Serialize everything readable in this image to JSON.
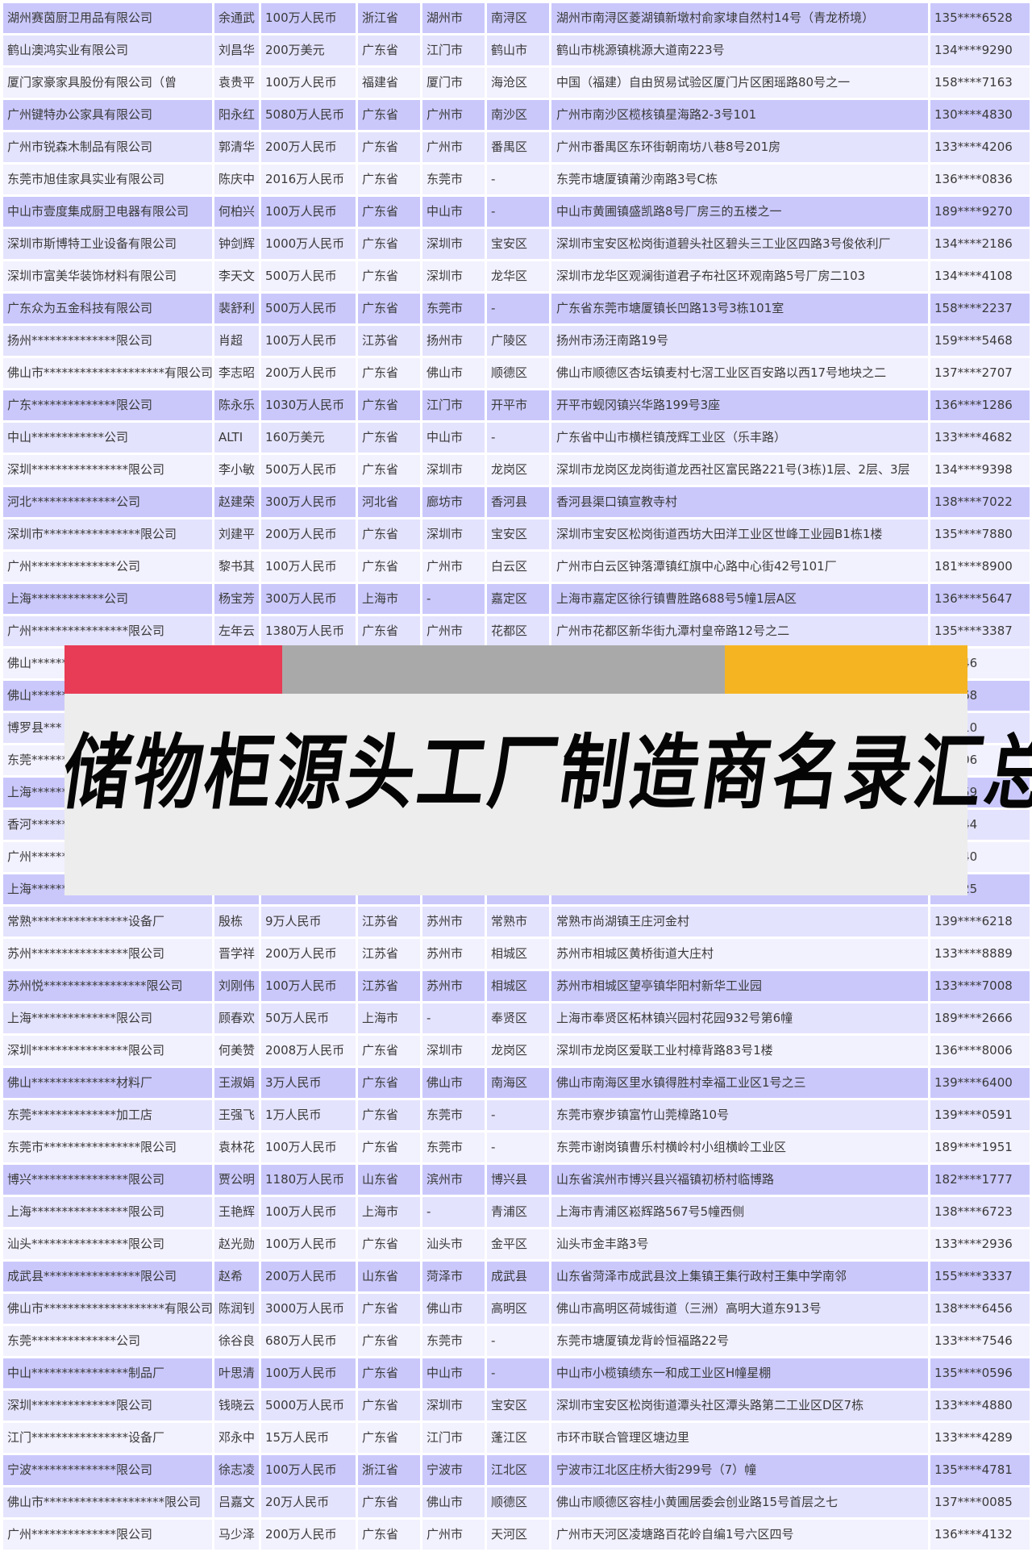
{
  "title": "储物柜源头工厂制造商名录汇总",
  "colors": {
    "row_dark": "#cac8fb",
    "row_medium": "#e4e3fd",
    "row_light": "#f2f1fe",
    "strip_red": "#e83b55",
    "strip_gray": "#a9a9a9",
    "strip_yellow": "#f5b523",
    "banner_bg": "#ededed"
  },
  "rows": [
    [
      "湖州赛茵厨卫用品有限公司",
      "余通武",
      "100万人民币",
      "浙江省",
      "湖州市",
      "南浔区",
      "湖州市南浔区菱湖镇新墩村俞家埭自然村14号（青龙桥境）",
      "135****6528"
    ],
    [
      "鹤山澳鸿实业有限公司",
      "刘昌华",
      "200万美元",
      "广东省",
      "江门市",
      "鹤山市",
      "鹤山市桃源镇桃源大道南223号",
      "134****9290"
    ],
    [
      "厦门家豪家具股份有限公司（曾",
      "袁贵平",
      "100万人民币",
      "福建省",
      "厦门市",
      "海沧区",
      "中国（福建）自由贸易试验区厦门片区囷瑶路80号之一",
      "158****7163"
    ],
    [
      "广州键特办公家具有限公司",
      "阳永红",
      "5080万人民币",
      "广东省",
      "广州市",
      "南沙区",
      "广州市南沙区榄核镇星海路2-3号101",
      "130****4830"
    ],
    [
      "广州市锐森木制品有限公司",
      "郭清华",
      "200万人民币",
      "广东省",
      "广州市",
      "番禺区",
      "广州市番禺区东环街朝南坊八巷8号201房",
      "133****4206"
    ],
    [
      "东莞市旭佳家具实业有限公司",
      "陈庆中",
      "2016万人民币",
      "广东省",
      "东莞市",
      "-",
      "东莞市塘厦镇莆沙南路3号C栋",
      "136****0836"
    ],
    [
      "中山市壹度集成厨卫电器有限公司",
      "何柏兴",
      "100万人民币",
      "广东省",
      "中山市",
      "-",
      "中山市黄圃镇盛凯路8号厂房三的五楼之一",
      "189****9270"
    ],
    [
      "深圳市斯博特工业设备有限公司",
      "钟剑辉",
      "1000万人民币",
      "广东省",
      "深圳市",
      "宝安区",
      "深圳市宝安区松岗街道碧头社区碧头三工业区四路3号俊依利厂",
      "134****2186"
    ],
    [
      "深圳市富美华装饰材料有限公司",
      "李天文",
      "500万人民币",
      "广东省",
      "深圳市",
      "龙华区",
      "深圳市龙华区观澜街道君子布社区环观南路5号厂房二103",
      "134****4108"
    ],
    [
      "广东众为五金科技有限公司",
      "裴舒利",
      "500万人民币",
      "广东省",
      "东莞市",
      "-",
      "广东省东莞市塘厦镇长凹路13号3栋101室",
      "158****2237"
    ],
    [
      "扬州**************限公司",
      "肖超",
      "100万人民币",
      "江苏省",
      "扬州市",
      "广陵区",
      "扬州市汤汪南路19号",
      "159****5468"
    ],
    [
      "佛山市********************有限公司",
      "李志昭",
      "200万人民币",
      "广东省",
      "佛山市",
      "顺德区",
      "佛山市顺德区杏坛镇麦村七滘工业区百安路以西17号地块之二",
      "137****2707"
    ],
    [
      "广东**************限公司",
      "陈永乐",
      "1030万人民币",
      "广东省",
      "江门市",
      "开平市",
      "开平市蚬冈镇兴华路199号3座",
      "136****1286"
    ],
    [
      "中山************公司",
      "ALTI",
      "160万美元",
      "广东省",
      "中山市",
      "-",
      "广东省中山市横栏镇茂辉工业区（乐丰路）",
      "133****4682"
    ],
    [
      "深圳****************限公司",
      "李小敏",
      "500万人民币",
      "广东省",
      "深圳市",
      "龙岗区",
      "深圳市龙岗区龙岗街道龙西社区富民路221号(3栋)1层、2层、3层",
      "134****9398"
    ],
    [
      "河北**************公司",
      "赵建荣",
      "300万人民币",
      "河北省",
      "廊坊市",
      "香河县",
      "香河县渠口镇宣教寺村",
      "138****7022"
    ],
    [
      "深圳市****************限公司",
      "刘建平",
      "200万人民币",
      "广东省",
      "深圳市",
      "宝安区",
      "深圳市宝安区松岗街道西坊大田洋工业区世峰工业园B1栋1楼",
      "135****7880"
    ],
    [
      "广州**************公司",
      "黎书其",
      "100万人民币",
      "广东省",
      "广州市",
      "白云区",
      "广州市白云区钟落潭镇红旗中心路中心街42号101厂",
      "181****8900"
    ],
    [
      "上海************公司",
      "杨宝芳",
      "300万人民币",
      "上海市",
      "-",
      "嘉定区",
      "上海市嘉定区徐行镇曹胜路688号5幢1层A区",
      "136****5647"
    ],
    [
      "广州****************限公司",
      "左年云",
      "1380万人民币",
      "广东省",
      "广州市",
      "花都区",
      "广州市花都区新华街九潭村皇帝路12号之二",
      "135****3387"
    ],
    [
      "佛山******",
      "",
      "",
      "",
      "",
      "",
      "",
      "**3546"
    ],
    [
      "佛山******",
      "",
      "",
      "",
      "",
      "",
      "",
      "**1768"
    ],
    [
      "博罗县***",
      "",
      "",
      "",
      "",
      "",
      "",
      "**7210"
    ],
    [
      "东莞******",
      "",
      "",
      "",
      "",
      "",
      "",
      "**8606"
    ],
    [
      "上海******",
      "",
      "",
      "",
      "",
      "",
      "",
      "**8659"
    ],
    [
      "香河******",
      "",
      "",
      "",
      "",
      "",
      "",
      "**9444"
    ],
    [
      "广州******",
      "",
      "",
      "",
      "",
      "",
      "",
      "**2540"
    ],
    [
      "上海******",
      "",
      "",
      "",
      "",
      "",
      "",
      "**9725"
    ],
    [
      "常熟****************设备厂",
      "殷栋",
      "9万人民币",
      "江苏省",
      "苏州市",
      "常熟市",
      "常熟市尚湖镇王庄河金村",
      "139****6218"
    ],
    [
      "苏州****************限公司",
      "晋学祥",
      "200万人民币",
      "江苏省",
      "苏州市",
      "相城区",
      "苏州市相城区黄桥街道大庄村",
      "133****8889"
    ],
    [
      "苏州悦*****************限公司",
      "刘刚伟",
      "100万人民币",
      "江苏省",
      "苏州市",
      "相城区",
      "苏州市相城区望亭镇华阳村新华工业园",
      "133****7008"
    ],
    [
      "上海**************限公司",
      "顾春欢",
      "50万人民币",
      "上海市",
      "-",
      "奉贤区",
      "上海市奉贤区柘林镇兴园村花园932号第6幢",
      "189****2666"
    ],
    [
      "深圳****************限公司",
      "何美赞",
      "2008万人民币",
      "广东省",
      "深圳市",
      "龙岗区",
      "深圳市龙岗区爱联工业村樟背路83号1楼",
      "136****8006"
    ],
    [
      "佛山**************材料厂",
      "王淑娟",
      "3万人民币",
      "广东省",
      "佛山市",
      "南海区",
      "佛山市南海区里水镇得胜村幸福工业区1号之三",
      "139****6400"
    ],
    [
      "东莞**************加工店",
      "王强飞",
      "1万人民币",
      "广东省",
      "东莞市",
      "-",
      "东莞市寮步镇富竹山莞樟路10号",
      "139****0591"
    ],
    [
      "东莞市****************限公司",
      "袁林花",
      "100万人民币",
      "广东省",
      "东莞市",
      "-",
      "东莞市谢岗镇曹乐村横岭村小组横岭工业区",
      "189****1951"
    ],
    [
      "博兴****************限公司",
      "贾公明",
      "1180万人民币",
      "山东省",
      "滨州市",
      "博兴县",
      "山东省滨州市博兴县兴福镇初桥村临博路",
      "182****1777"
    ],
    [
      "上海****************限公司",
      "王艳辉",
      "100万人民币",
      "上海市",
      "-",
      "青浦区",
      "上海市青浦区崧辉路567号5幢西侧",
      "138****6723"
    ],
    [
      "汕头****************限公司",
      "赵光勋",
      "100万人民币",
      "广东省",
      "汕头市",
      "金平区",
      "汕头市金丰路3号",
      "133****2936"
    ],
    [
      "成武县****************限公司",
      "赵希",
      "200万人民币",
      "山东省",
      "菏泽市",
      "成武县",
      "山东省菏泽市成武县汶上集镇王集行政村王集中学南邻",
      "155****3337"
    ],
    [
      "佛山市********************有限公司",
      "陈润钊",
      "3000万人民币",
      "广东省",
      "佛山市",
      "高明区",
      "佛山市高明区荷城街道（三洲）高明大道东913号",
      "138****6456"
    ],
    [
      "东莞**************公司",
      "徐谷良",
      "680万人民币",
      "广东省",
      "东莞市",
      "-",
      "东莞市塘厦镇龙背岭恒福路22号",
      "133****7546"
    ],
    [
      "中山****************制品厂",
      "叶思清",
      "100万人民币",
      "广东省",
      "中山市",
      "-",
      "中山市小榄镇绩东一和成工业区H幢星棚",
      "135****0596"
    ],
    [
      "深圳**************限公司",
      "钱晓云",
      "5000万人民币",
      "广东省",
      "深圳市",
      "宝安区",
      "深圳市宝安区松岗街道潭头社区潭头路第二工业区D区7栋",
      "133****4880"
    ],
    [
      "江门****************设备厂",
      "邓永中",
      "15万人民币",
      "广东省",
      "江门市",
      "蓬江区",
      "市环市联合管理区塘边里",
      "133****4289"
    ],
    [
      "宁波**************限公司",
      "徐志凌",
      "100万人民币",
      "浙江省",
      "宁波市",
      "江北区",
      "宁波市江北区庄桥大街299号（7）幢",
      "135****4781"
    ],
    [
      "佛山市********************限公司",
      "吕嘉文",
      "20万人民币",
      "广东省",
      "佛山市",
      "顺德区",
      "佛山市顺德区容桂小黄圃居委会创业路15号首层之七",
      "137****0085"
    ],
    [
      "广州**************限公司",
      "马少泽",
      "200万人民币",
      "广东省",
      "广州市",
      "天河区",
      "广州市天河区凌塘路百花岭自编1号六区四号",
      "136****4132"
    ]
  ]
}
